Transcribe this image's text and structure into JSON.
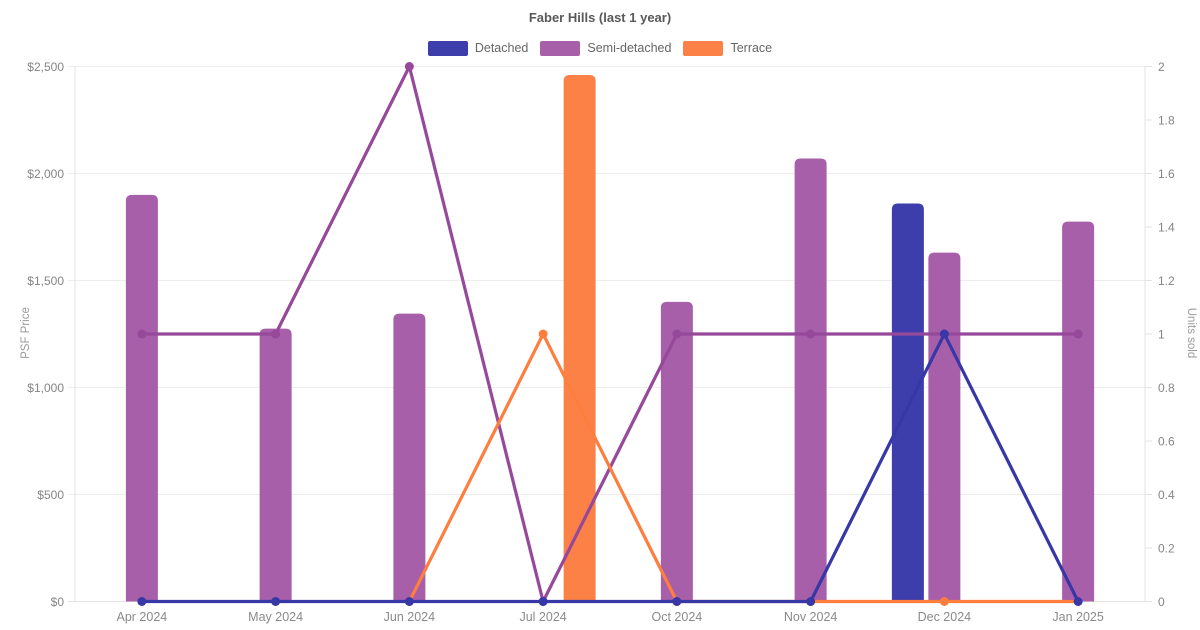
{
  "chart_data": {
    "type": "bar+line combo (bars = PSF price on left axis, lines = units sold on right axis)",
    "title": "Faber Hills (last 1 year)",
    "categories": [
      "Apr 2024",
      "May 2024",
      "Jun 2024",
      "Jul 2024",
      "Oct 2024",
      "Nov 2024",
      "Dec 2024",
      "Jan 2025"
    ],
    "series": [
      {
        "name": "Detached",
        "bar_color": "#3d3dab",
        "line_color": "#3737a6",
        "psf_bars": [
          null,
          null,
          null,
          null,
          null,
          null,
          1860,
          null
        ],
        "units_line": [
          0,
          0,
          0,
          0,
          0,
          0,
          1,
          0
        ]
      },
      {
        "name": "Semi-detached",
        "bar_color": "#a75fa9",
        "line_color": "#96489a",
        "psf_bars": [
          1900,
          1275,
          1345,
          null,
          1400,
          2070,
          1630,
          1775
        ],
        "units_line": [
          1,
          1,
          2,
          0,
          1,
          1,
          1,
          1
        ]
      },
      {
        "name": "Terrace",
        "bar_color": "#fb8146",
        "line_color": "#fd7e3d",
        "psf_bars": [
          null,
          null,
          null,
          2460,
          null,
          null,
          null,
          null
        ],
        "units_line": [
          null,
          null,
          0,
          1,
          0,
          0,
          0,
          0
        ]
      }
    ],
    "left_axis": {
      "label": "PSF Price",
      "tick_labels": [
        "$0",
        "$500",
        "$1,000",
        "$1,500",
        "$2,000",
        "$2,500"
      ],
      "tick_values": [
        0,
        500,
        1000,
        1500,
        2000,
        2500
      ],
      "min": 0,
      "max": 2500
    },
    "right_axis": {
      "label": "Units sold",
      "tick_labels": [
        "0",
        "0.2",
        "0.4",
        "0.6",
        "0.8",
        "1",
        "1.2",
        "1.4",
        "1.6",
        "1.8",
        "2"
      ],
      "tick_values": [
        0,
        0.2,
        0.4,
        0.6,
        0.8,
        1,
        1.2,
        1.4,
        1.6,
        1.8,
        2
      ],
      "min": 0,
      "max": 2
    },
    "legend_position": "top",
    "grid": "horizontal gridlines at $500 steps only",
    "colors": {
      "gridline": "#ededed",
      "axis_border": "#e3e3e3",
      "title_text": "#595959",
      "legend_text": "#666666",
      "tick_text": "#858585",
      "axis_title_text": "#9a9a9a"
    }
  }
}
